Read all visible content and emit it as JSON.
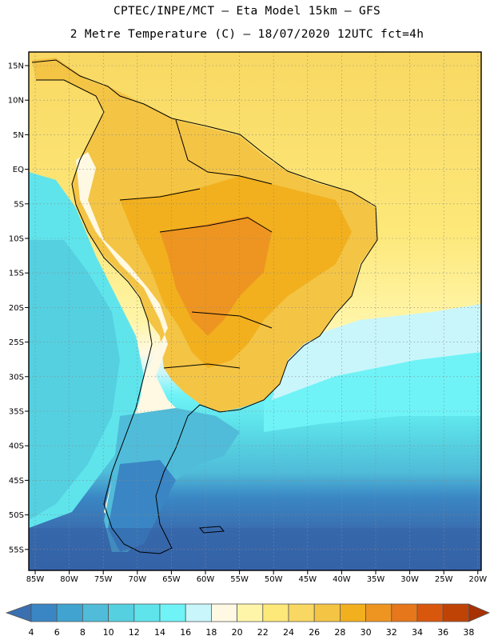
{
  "header": {
    "line1": "CPTEC/INPE/MCT –  Eta Model 15km – GFS",
    "line2": "2 Metre Temperature (C) – 18/07/2020 12UTC fct=4h"
  },
  "map": {
    "lat_ticks": [
      "15N",
      "10N",
      "5N",
      "EQ",
      "5S",
      "10S",
      "15S",
      "20S",
      "25S",
      "30S",
      "35S",
      "40S",
      "45S",
      "50S",
      "55S"
    ],
    "lon_ticks": [
      "85W",
      "80W",
      "75W",
      "70W",
      "65W",
      "60W",
      "55W",
      "50W",
      "45W",
      "40W",
      "35W",
      "30W",
      "25W",
      "20W"
    ]
  },
  "colorbar": {
    "labels": [
      "4",
      "6",
      "8",
      "10",
      "12",
      "14",
      "16",
      "18",
      "20",
      "22",
      "24",
      "26",
      "28",
      "30",
      "32",
      "34",
      "36",
      "38"
    ],
    "colors": [
      "#3a6fb0",
      "#3a86c4",
      "#41a3cf",
      "#50bcd9",
      "#55d0e0",
      "#5fe4ec",
      "#6ff3f7",
      "#c9f6fb",
      "#fff9e3",
      "#fff5a8",
      "#fde87a",
      "#f8d862",
      "#f4c445",
      "#f2b01e",
      "#ee9521",
      "#e7771b",
      "#d9570d",
      "#c04306",
      "#a83103"
    ]
  }
}
